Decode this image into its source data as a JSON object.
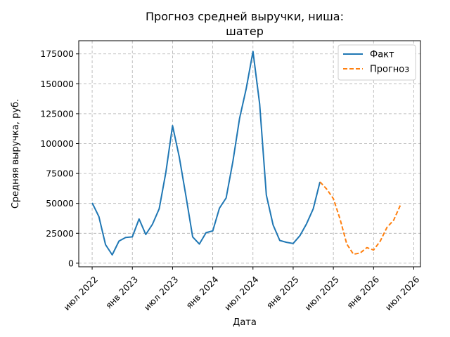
{
  "chart_data": {
    "type": "line",
    "title": "Прогноз средней выручки, ниша:\nшатер",
    "xlabel": "Дата",
    "ylabel": "Средняя выручка, руб.",
    "grid": true,
    "legend_position": "top-right",
    "x_ticks": [
      "июл 2022",
      "янв 2023",
      "июл 2023",
      "янв 2024",
      "июл 2024",
      "янв 2025",
      "июл 2025",
      "янв 2026",
      "июл 2026"
    ],
    "y_ticks": [
      "0",
      "25000",
      "50000",
      "75000",
      "100000",
      "125000",
      "150000",
      "175000"
    ],
    "ylim": [
      -3000,
      186000
    ],
    "xlim": [
      "2022-05",
      "2026-08"
    ],
    "series": [
      {
        "name": "Факт",
        "color": "#1f77b4",
        "style": "solid",
        "x": [
          "2022-07",
          "2022-08",
          "2022-09",
          "2022-10",
          "2022-11",
          "2022-12",
          "2023-01",
          "2023-02",
          "2023-03",
          "2023-04",
          "2023-05",
          "2023-06",
          "2023-07",
          "2023-08",
          "2023-09",
          "2023-10",
          "2023-11",
          "2023-12",
          "2024-01",
          "2024-02",
          "2024-03",
          "2024-04",
          "2024-05",
          "2024-06",
          "2024-07",
          "2024-08",
          "2024-09",
          "2024-10",
          "2024-11",
          "2024-12",
          "2025-01",
          "2025-02",
          "2025-03",
          "2025-04",
          "2025-05"
        ],
        "values": [
          50500,
          39000,
          15500,
          7000,
          18500,
          21500,
          22000,
          37000,
          24000,
          32500,
          45500,
          76000,
          115000,
          89000,
          56000,
          22000,
          16000,
          25500,
          27000,
          46000,
          54500,
          85000,
          121000,
          146000,
          177000,
          133000,
          57000,
          32000,
          19000,
          17500,
          16500,
          23000,
          33000,
          45500,
          68000
        ]
      },
      {
        "name": "Прогноз",
        "color": "#ff7f0e",
        "style": "dashed",
        "x": [
          "2025-05",
          "2025-06",
          "2025-07",
          "2025-08",
          "2025-09",
          "2025-10",
          "2025-11",
          "2025-12",
          "2026-01",
          "2026-02",
          "2026-03",
          "2026-04",
          "2026-05"
        ],
        "values": [
          68000,
          62000,
          54000,
          37000,
          16000,
          7500,
          8500,
          13000,
          11000,
          18500,
          30000,
          36000,
          48500
        ]
      }
    ]
  }
}
